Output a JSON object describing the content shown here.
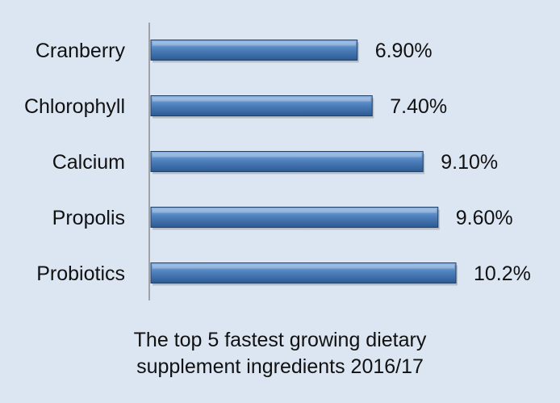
{
  "colors": {
    "background": "#dce6f2",
    "bar_top": "#8db4e2",
    "bar_mid": "#4f81bd",
    "bar_bottom": "#2c5a92",
    "bar_edge": "#1f3f66",
    "axis": "#8c8c8c"
  },
  "caption": {
    "line1": "The top 5 fastest growing dietary",
    "line2": "supplement ingredients 2016/17"
  },
  "chart_data": {
    "type": "bar",
    "orientation": "horizontal",
    "categories": [
      "Cranberry",
      "Chlorophyll",
      "Calcium",
      "Propolis",
      "Probiotics"
    ],
    "values": [
      6.9,
      7.4,
      9.1,
      9.6,
      10.2
    ],
    "value_labels": [
      "6.90%",
      "7.40%",
      "9.10%",
      "9.60%",
      "10.2%"
    ],
    "title": "The top 5 fastest growing dietary supplement ingredients 2016/17",
    "xlabel": "",
    "ylabel": "",
    "xlim": [
      0,
      10.2
    ],
    "grid": false,
    "legend": "none"
  }
}
